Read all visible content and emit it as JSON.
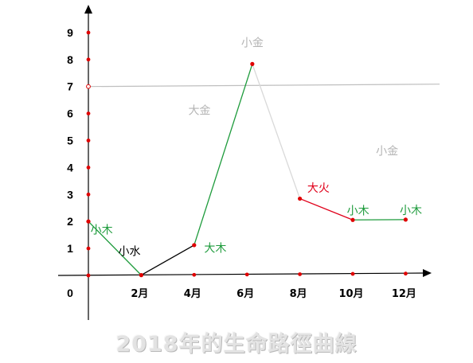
{
  "chart_data": {
    "type": "line",
    "title": "2018年的生命路徑曲線",
    "origin_label": "0",
    "x_ticks": [
      {
        "value": 2,
        "label": "2月"
      },
      {
        "value": 4,
        "label": "4月"
      },
      {
        "value": 6,
        "label": "6月"
      },
      {
        "value": 8,
        "label": "8月"
      },
      {
        "value": 10,
        "label": "10月"
      },
      {
        "value": 12,
        "label": "12月"
      }
    ],
    "y_ticks": [
      "1",
      "2",
      "3",
      "4",
      "5",
      "6",
      "7",
      "8",
      "9"
    ],
    "xlim": [
      0,
      13
    ],
    "ylim": [
      0,
      9
    ],
    "reference_line": {
      "y": 7,
      "color": "#bfbfbf"
    },
    "segments": [
      {
        "from": [
          0,
          2
        ],
        "to": [
          2,
          0
        ],
        "color": "#1e9b3c",
        "label": "小木"
      },
      {
        "from": [
          2,
          0
        ],
        "to": [
          4,
          1.1
        ],
        "color": "#000000",
        "label": "小水"
      },
      {
        "from": [
          4,
          1.1
        ],
        "to": [
          6.2,
          7.8
        ],
        "color": "#1e9b3c",
        "label": "大木"
      },
      {
        "from": [
          6.2,
          7.8
        ],
        "to": [
          8,
          2.8
        ],
        "color": "#d9d9d9",
        "label": "小金"
      },
      {
        "from": [
          8,
          2.8
        ],
        "to": [
          10,
          2
        ],
        "color": "#e0001a",
        "label": "大火"
      },
      {
        "from": [
          10,
          2
        ],
        "to": [
          12,
          2
        ],
        "color": "#1e9b3c",
        "label": "小木"
      }
    ],
    "points": [
      {
        "x": 0,
        "y": 2
      },
      {
        "x": 2,
        "y": 0
      },
      {
        "x": 4,
        "y": 1.1
      },
      {
        "x": 6.2,
        "y": 7.8
      },
      {
        "x": 8,
        "y": 2.8
      },
      {
        "x": 10,
        "y": 2
      },
      {
        "x": 12,
        "y": 2
      }
    ],
    "annotations": [
      {
        "text": "小木",
        "color": "#1e9b3c",
        "x": 0.5,
        "y": 1.55
      },
      {
        "text": "小水",
        "color": "#000000",
        "x": 1.55,
        "y": 0.75
      },
      {
        "text": "大木",
        "color": "#1e9b3c",
        "x": 4.8,
        "y": 0.85
      },
      {
        "text": "小金",
        "color": "#b4b4b4",
        "x": 6.2,
        "y": 8.45
      },
      {
        "text": "大金",
        "color": "#b4b4b4",
        "x": 4.2,
        "y": 5.95
      },
      {
        "text": "小金",
        "color": "#b4b4b4",
        "x": 11.3,
        "y": 4.4
      },
      {
        "text": "大火",
        "color": "#e0001a",
        "x": 8.7,
        "y": 3.05
      },
      {
        "text": "小木",
        "color": "#1e9b3c",
        "x": 10.2,
        "y": 2.2
      },
      {
        "text": "小木",
        "color": "#1e9b3c",
        "x": 12.2,
        "y": 2.2
      }
    ],
    "colors": {
      "axis": "#000000",
      "marker": "#e00000"
    },
    "grid": false,
    "legend": "none"
  }
}
